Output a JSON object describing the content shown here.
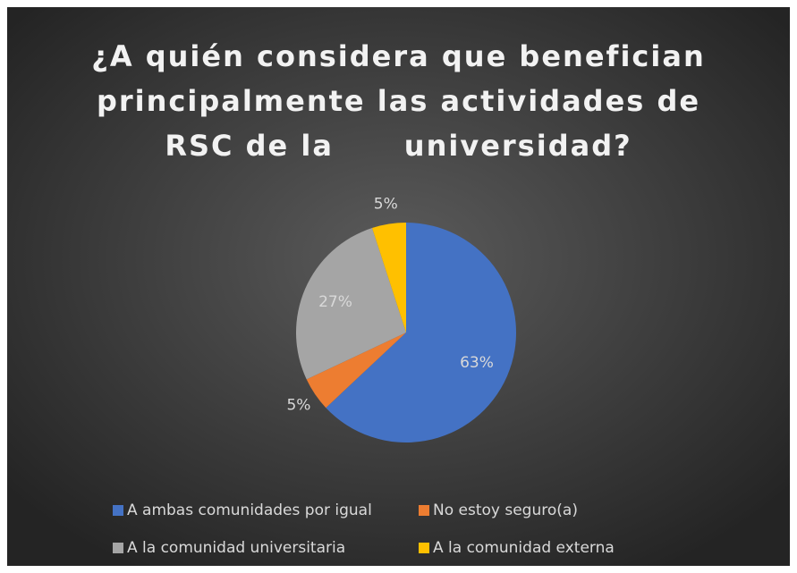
{
  "chart_data": {
    "type": "pie",
    "title": "¿A quién considera que benefician principalmente las actividades de RSC de la      universidad?",
    "categories": [
      "A ambas comunidades por igual",
      "No estoy seguro(a)",
      "A la comunidad universitaria",
      "A la comunidad externa"
    ],
    "values": [
      63,
      5,
      27,
      5
    ],
    "value_labels": [
      "63%",
      "5%",
      "27%",
      "5%"
    ],
    "colors": [
      "#4472c4",
      "#ed7d31",
      "#a5a5a5",
      "#ffc000"
    ],
    "legend": "bottom"
  }
}
